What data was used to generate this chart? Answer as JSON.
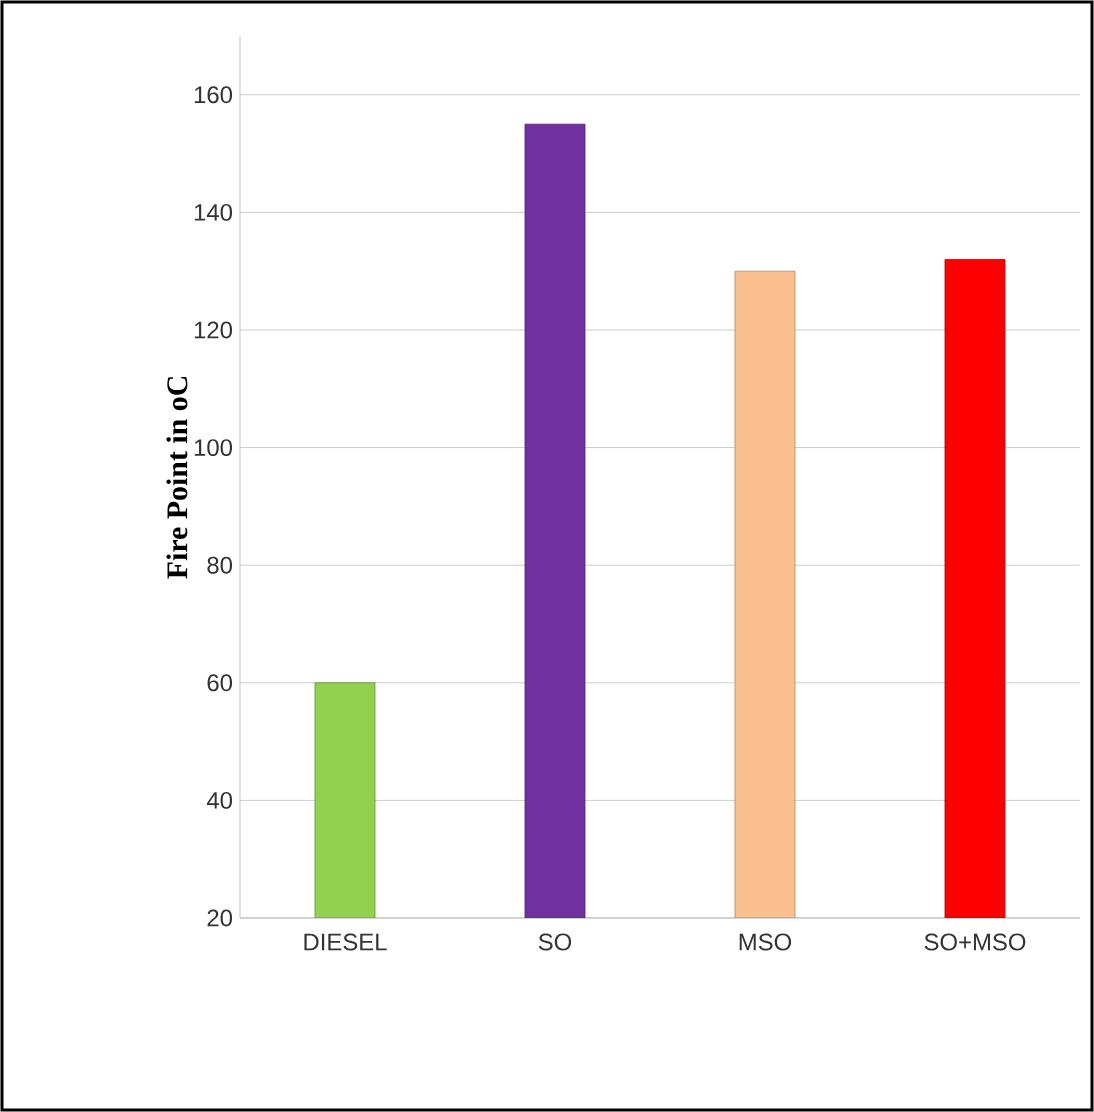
{
  "chart_data": {
    "type": "bar",
    "ylabel": "Fire Point in oC",
    "categories": [
      "DIESEL",
      "SO",
      "MSO",
      "SO+MSO"
    ],
    "values": [
      60,
      155,
      130,
      132
    ],
    "colors": [
      "#92d050",
      "#7030a0",
      "#fac090",
      "#ff0000"
    ],
    "ylim": [
      20,
      170
    ],
    "yticks": [
      20,
      40,
      60,
      80,
      100,
      120,
      140,
      160
    ],
    "grid": "y"
  }
}
